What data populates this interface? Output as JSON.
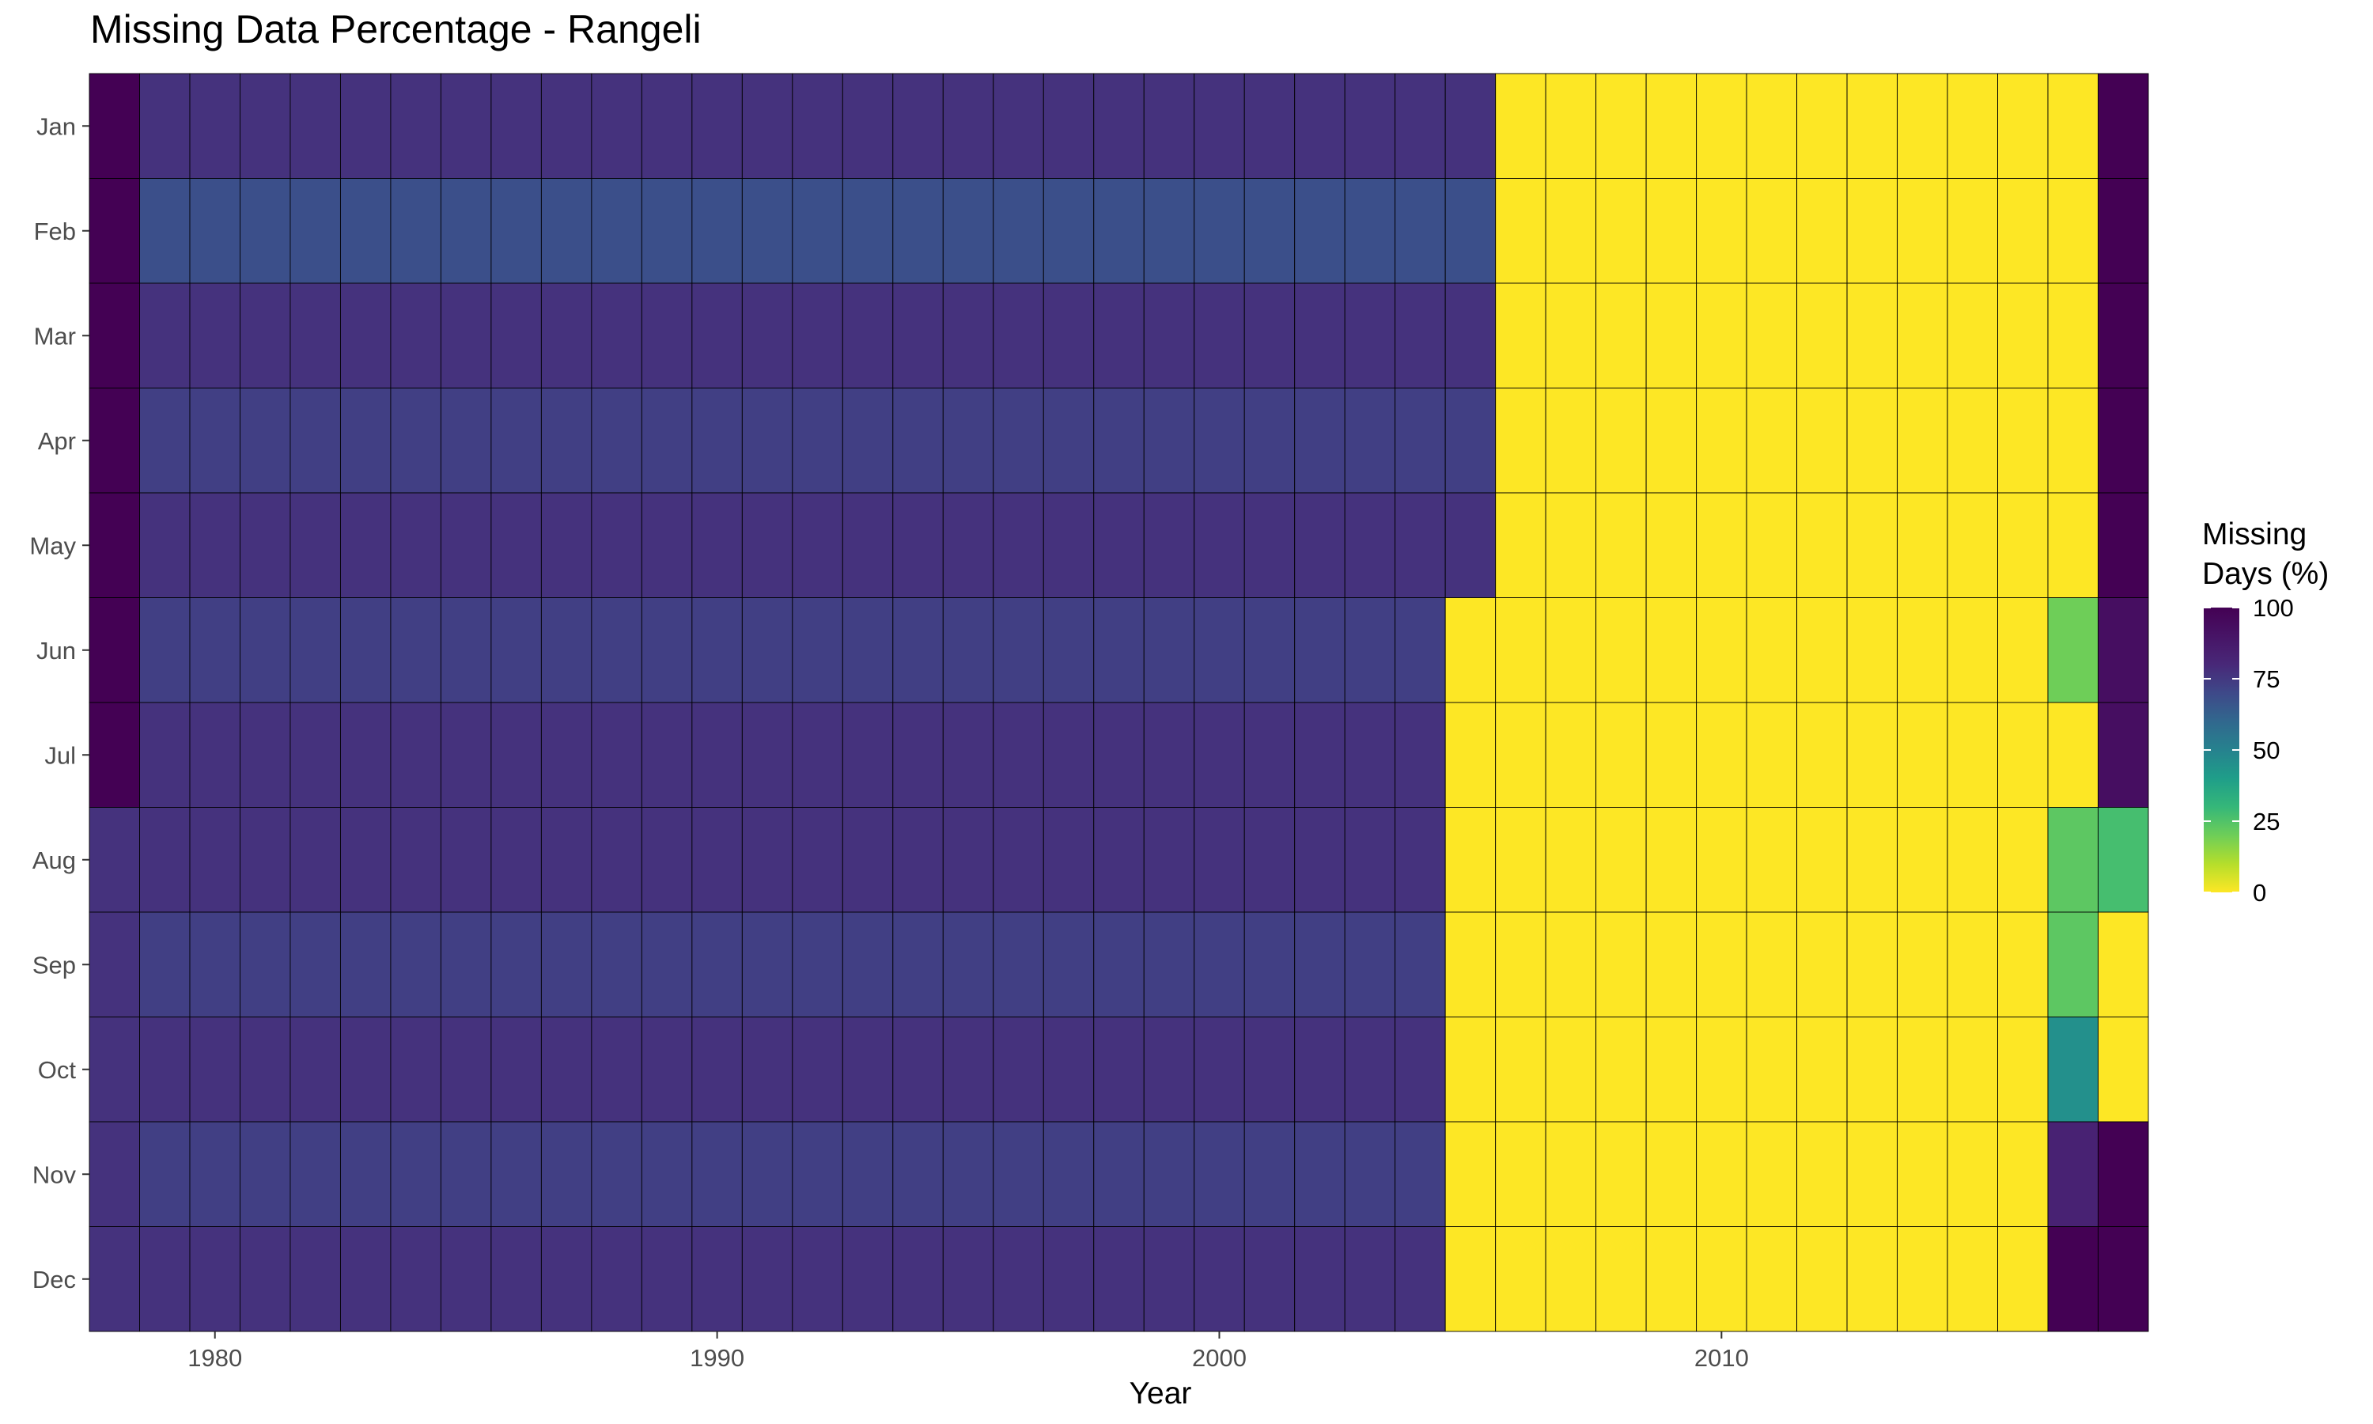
{
  "chart_data": {
    "type": "heatmap",
    "title": "Missing Data Percentage - Rangeli",
    "xlabel": "Year",
    "ylabel": "",
    "x_ticks": [
      1980,
      1990,
      2000,
      2010
    ],
    "xlim": [
      1977.5,
      2018.5
    ],
    "years": [
      1978,
      1979,
      1980,
      1981,
      1982,
      1983,
      1984,
      1985,
      1986,
      1987,
      1988,
      1989,
      1990,
      1991,
      1992,
      1993,
      1994,
      1995,
      1996,
      1997,
      1998,
      1999,
      2000,
      2001,
      2002,
      2003,
      2004,
      2005,
      2006,
      2007,
      2008,
      2009,
      2010,
      2011,
      2012,
      2013,
      2014,
      2015,
      2016,
      2017,
      2018
    ],
    "months": [
      "Jan",
      "Feb",
      "Mar",
      "Apr",
      "May",
      "Jun",
      "Jul",
      "Aug",
      "Sep",
      "Oct",
      "Nov",
      "Dec"
    ],
    "legend": {
      "title_lines": [
        "Missing",
        "Days (%)"
      ],
      "ticks": [
        100,
        75,
        50,
        25,
        0
      ],
      "range": [
        0,
        100
      ],
      "colormap": "viridis (reversed)",
      "position": "right"
    },
    "grid": false,
    "pattern": {
      "regions": [
        {
          "months": [
            "Jan",
            "Feb",
            "Mar",
            "Apr",
            "May",
            "Jun",
            "Jul"
          ],
          "years": [
            1978
          ],
          "value": 100
        },
        {
          "months": [
            "Aug",
            "Sep",
            "Oct",
            "Nov",
            "Dec"
          ],
          "years": [
            1978
          ],
          "value": 77
        },
        {
          "months": [
            "Jan",
            "Mar",
            "May",
            "Jul",
            "Aug",
            "Oct",
            "Dec"
          ],
          "years": [
            1979,
            2005
          ],
          "value": 77
        },
        {
          "months": [
            "Feb"
          ],
          "years": [
            1979,
            2005
          ],
          "value": 68
        },
        {
          "months": [
            "Apr",
            "Jun",
            "Sep",
            "Nov"
          ],
          "years": [
            1979,
            2005
          ],
          "value": 73
        },
        {
          "months": [
            "Jun",
            "Jul",
            "Aug",
            "Sep",
            "Oct",
            "Nov",
            "Dec"
          ],
          "years": [
            2005
          ],
          "value": 0
        },
        {
          "months": [
            "Jan",
            "Feb",
            "Mar",
            "Apr",
            "May",
            "Jun",
            "Jul",
            "Aug",
            "Sep",
            "Oct",
            "Nov",
            "Dec"
          ],
          "years": [
            2006,
            2016
          ],
          "value": 0
        },
        {
          "months": [
            "Jan",
            "Feb",
            "Mar",
            "Apr",
            "May",
            "Jul"
          ],
          "years": [
            2017
          ],
          "value": 0
        },
        {
          "months": [
            "Jun"
          ],
          "years": [
            2017
          ],
          "value": 20
        },
        {
          "months": [
            "Aug",
            "Sep"
          ],
          "years": [
            2017
          ],
          "value": 23
        },
        {
          "months": [
            "Oct"
          ],
          "years": [
            2017
          ],
          "value": 45
        },
        {
          "months": [
            "Nov"
          ],
          "years": [
            2017
          ],
          "value": 83
        },
        {
          "months": [
            "Dec"
          ],
          "years": [
            2017
          ],
          "value": 100
        },
        {
          "months": [
            "Jan",
            "Feb",
            "Mar",
            "Apr",
            "May"
          ],
          "years": [
            2018
          ],
          "value": 100
        },
        {
          "months": [
            "Jun",
            "Jul"
          ],
          "years": [
            2018
          ],
          "value": 93
        },
        {
          "months": [
            "Aug"
          ],
          "years": [
            2018
          ],
          "value": 27
        },
        {
          "months": [
            "Sep",
            "Oct"
          ],
          "years": [
            2018
          ],
          "value": 0
        },
        {
          "months": [
            "Nov",
            "Dec"
          ],
          "years": [
            2018
          ],
          "value": 100
        }
      ]
    }
  }
}
